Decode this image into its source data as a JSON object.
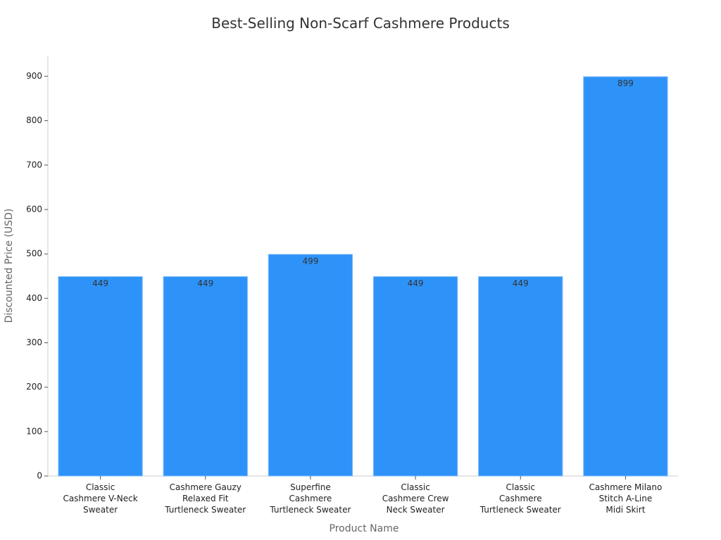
{
  "chart_data": {
    "type": "bar",
    "title": "Best-Selling Non-Scarf Cashmere Products",
    "x_label": "Product Name",
    "y_label": "Discounted Price (USD)",
    "categories": [
      "Classic\nCashmere V-Neck\nSweater",
      "Cashmere Gauzy\nRelaxed Fit\nTurtleneck Sweater",
      "Superfine\nCashmere\nTurtleneck Sweater",
      "Classic\nCashmere Crew\nNeck Sweater",
      "Classic\nCashmere\nTurtleneck Sweater",
      "Cashmere Milano\nStitch A-Line\nMidi Skirt"
    ],
    "values": [
      449,
      449,
      499,
      449,
      449,
      899
    ],
    "color": "#2e93f9",
    "ylim": [
      0,
      945
    ],
    "yticks": [
      0,
      100,
      200,
      300,
      400,
      500,
      600,
      700,
      800,
      900
    ],
    "grid": false
  }
}
